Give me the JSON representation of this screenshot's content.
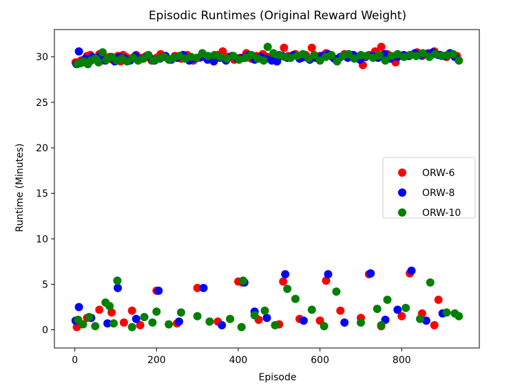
{
  "chart_data": {
    "type": "scatter",
    "title": "Episodic Runtimes (Original Reward Weight)",
    "xlabel": "Episode",
    "ylabel": "Runtime (Minutes)",
    "xlim": [
      -50,
      990
    ],
    "ylim": [
      -2,
      33
    ],
    "xticks": [
      0,
      200,
      400,
      600,
      800
    ],
    "yticks": [
      0,
      5,
      10,
      15,
      20,
      25,
      30
    ],
    "grid": false,
    "legend_position": "center-right",
    "series": [
      {
        "name": "ORW-6",
        "color": "#ff0000",
        "points_note": "",
        "x": [
          2,
          8,
          15,
          20,
          24,
          30,
          38,
          45,
          52,
          60,
          66,
          72,
          85,
          92,
          100,
          105,
          112,
          118,
          125,
          132,
          140,
          150,
          160,
          175,
          188,
          200,
          210,
          220,
          232,
          245,
          260,
          275,
          290,
          305,
          320,
          335,
          350,
          362,
          375,
          390,
          405,
          420,
          432,
          445,
          460,
          470,
          480,
          500,
          512,
          522,
          540,
          555,
          565,
          580,
          600,
          615,
          630,
          645,
          660,
          680,
          695,
          705,
          720,
          735,
          750,
          765,
          785,
          800,
          820,
          838,
          850,
          865,
          880,
          895,
          910,
          925,
          935,
          5,
          30,
          60,
          90,
          120,
          140,
          160,
          200,
          250,
          300,
          350,
          400,
          410,
          450,
          500,
          510,
          550,
          600,
          615,
          650,
          700,
          720,
          750,
          800,
          820,
          850,
          880,
          890
        ],
        "y": [
          29.4,
          29.3,
          29.6,
          29.5,
          29.7,
          30.1,
          30.2,
          29.8,
          29.9,
          30.3,
          29.6,
          29.9,
          30.0,
          29.7,
          29.9,
          30.1,
          29.5,
          30.2,
          30.0,
          29.6,
          29.8,
          30.2,
          29.9,
          30.1,
          29.6,
          29.9,
          30.3,
          30.0,
          29.7,
          30.1,
          29.8,
          30.2,
          29.6,
          29.9,
          30.0,
          29.8,
          30.2,
          30.6,
          30.0,
          29.7,
          29.9,
          30.4,
          29.8,
          30.1,
          30.3,
          30.0,
          29.8,
          30.2,
          31.0,
          30.1,
          30.3,
          29.9,
          30.2,
          31.0,
          30.1,
          30.4,
          30.0,
          29.8,
          30.3,
          30.2,
          30.0,
          29.1,
          30.2,
          30.6,
          31.1,
          30.3,
          29.4,
          30.1,
          30.2,
          30.5,
          30.1,
          30.4,
          30.6,
          30.2,
          30.0,
          30.3,
          30.1,
          0.3,
          1.3,
          2.2,
          1.9,
          0.8,
          2.1,
          0.5,
          4.3,
          0.7,
          4.6,
          0.9,
          5.3,
          5.2,
          1.1,
          0.6,
          5.3,
          1.2,
          1.0,
          5.4,
          2.1,
          1.3,
          6.1,
          0.4,
          1.5,
          6.2,
          1.8,
          0.5,
          3.3
        ]
      },
      {
        "name": "ORW-8",
        "color": "#0000ff",
        "x": [
          4,
          10,
          18,
          26,
          35,
          42,
          55,
          62,
          75,
          88,
          98,
          110,
          122,
          135,
          148,
          158,
          170,
          182,
          195,
          208,
          222,
          236,
          250,
          265,
          280,
          295,
          310,
          325,
          340,
          355,
          370,
          385,
          398,
          412,
          425,
          440,
          455,
          468,
          482,
          495,
          508,
          520,
          535,
          550,
          562,
          575,
          590,
          605,
          620,
          635,
          650,
          668,
          682,
          698,
          712,
          728,
          742,
          758,
          772,
          790,
          805,
          818,
          832,
          848,
          862,
          876,
          890,
          905,
          918,
          930,
          2,
          10,
          40,
          80,
          105,
          150,
          205,
          255,
          315,
          360,
          415,
          440,
          470,
          515,
          560,
          620,
          660,
          724,
          760,
          790,
          824,
          860,
          900
        ],
        "y": [
          29.2,
          30.6,
          29.4,
          29.8,
          29.5,
          30.0,
          29.7,
          30.1,
          29.6,
          29.9,
          29.5,
          30.0,
          29.8,
          29.6,
          30.1,
          29.7,
          29.9,
          30.0,
          29.6,
          29.8,
          30.1,
          29.7,
          29.9,
          30.2,
          29.6,
          29.8,
          30.0,
          29.7,
          29.5,
          29.9,
          29.6,
          30.1,
          29.8,
          29.9,
          30.2,
          29.7,
          30.0,
          29.8,
          29.6,
          29.5,
          30.1,
          29.9,
          30.2,
          29.8,
          30.0,
          29.7,
          29.9,
          30.1,
          30.3,
          29.8,
          30.0,
          29.9,
          30.2,
          29.7,
          30.0,
          30.1,
          29.9,
          30.3,
          29.8,
          30.0,
          30.2,
          30.1,
          30.4,
          30.2,
          30.3,
          30.5,
          30.2,
          30.1,
          30.4,
          30.0,
          1.0,
          2.5,
          1.3,
          0.7,
          4.6,
          1.2,
          4.3,
          0.9,
          4.6,
          0.5,
          5.2,
          2.0,
          1.3,
          6.1,
          1.0,
          6.1,
          0.8,
          6.2,
          1.1,
          2.2,
          6.5,
          1.0,
          1.8
        ]
      },
      {
        "name": "ORW-10",
        "color": "#008000",
        "x": [
          6,
          14,
          22,
          32,
          40,
          50,
          58,
          68,
          78,
          90,
          102,
          115,
          128,
          142,
          155,
          168,
          180,
          192,
          205,
          218,
          230,
          242,
          256,
          270,
          284,
          298,
          312,
          326,
          342,
          356,
          372,
          388,
          402,
          418,
          432,
          448,
          462,
          472,
          486,
          500,
          514,
          528,
          544,
          558,
          572,
          586,
          600,
          614,
          628,
          642,
          656,
          670,
          684,
          700,
          714,
          730,
          745,
          760,
          775,
          790,
          806,
          822,
          836,
          852,
          868,
          882,
          898,
          912,
          926,
          940,
          8,
          20,
          35,
          50,
          75,
          85,
          95,
          104,
          140,
          170,
          190,
          200,
          230,
          260,
          300,
          330,
          380,
          408,
          412,
          440,
          465,
          490,
          520,
          540,
          580,
          610,
          640,
          700,
          740,
          750,
          765,
          810,
          845,
          870,
          910,
          930,
          940
        ],
        "y": [
          29.2,
          29.3,
          29.5,
          29.2,
          29.6,
          29.8,
          29.4,
          30.5,
          29.7,
          30.0,
          29.6,
          29.8,
          29.5,
          29.9,
          29.6,
          29.8,
          30.2,
          29.6,
          29.8,
          30.0,
          29.7,
          29.9,
          30.1,
          29.8,
          30.0,
          29.9,
          30.4,
          30.1,
          30.2,
          30.0,
          29.8,
          30.1,
          29.7,
          29.9,
          30.2,
          29.8,
          29.6,
          31.1,
          30.4,
          30.2,
          30.0,
          29.9,
          30.1,
          30.3,
          29.8,
          30.2,
          29.6,
          30.0,
          30.2,
          29.5,
          30.1,
          30.3,
          29.8,
          30.2,
          30.1,
          29.9,
          30.2,
          29.6,
          30.1,
          30.3,
          30.0,
          30.2,
          30.1,
          30.4,
          30.0,
          30.3,
          30.1,
          30.2,
          30.3,
          29.6,
          1.1,
          0.6,
          1.4,
          0.4,
          3.0,
          2.6,
          0.7,
          5.4,
          0.3,
          1.4,
          0.8,
          2.0,
          0.6,
          1.9,
          1.5,
          0.9,
          1.2,
          0.3,
          5.4,
          1.6,
          2.1,
          0.5,
          4.5,
          3.4,
          2.2,
          0.4,
          4.2,
          0.8,
          2.3,
          0.5,
          3.3,
          2.4,
          1.2,
          5.2,
          1.9,
          1.8,
          1.5
        ]
      }
    ]
  }
}
